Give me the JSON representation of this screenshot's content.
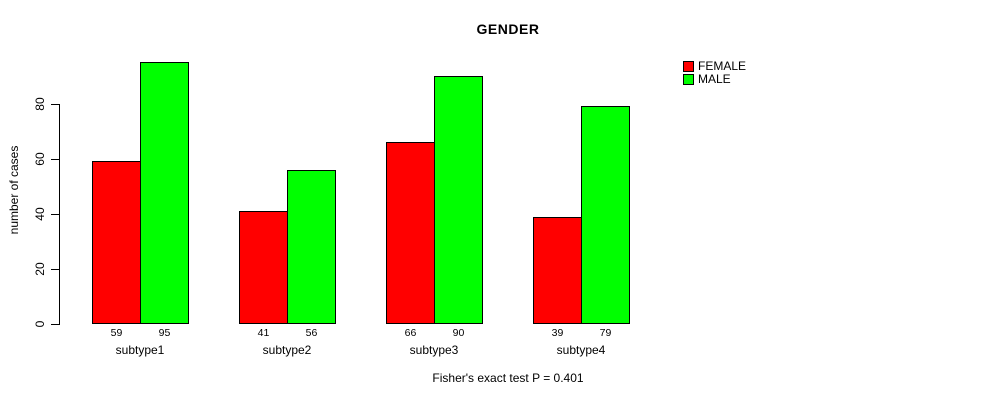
{
  "chart_data": {
    "type": "bar",
    "title": "GENDER",
    "ylabel": "number of cases",
    "xlabel": "",
    "categories": [
      "subtype1",
      "subtype2",
      "subtype3",
      "subtype4"
    ],
    "series": [
      {
        "name": "FEMALE",
        "color": "#ff0000",
        "values": [
          59,
          41,
          66,
          39
        ]
      },
      {
        "name": "MALE",
        "color": "#00ff00",
        "values": [
          95,
          56,
          90,
          79
        ]
      }
    ],
    "yticks": [
      0,
      20,
      40,
      60,
      80
    ],
    "ylim": [
      0,
      95
    ],
    "grid": false,
    "legend_position": "top-right",
    "bar_value_labels": [
      [
        "59",
        "95"
      ],
      [
        "41",
        "56"
      ],
      [
        "66",
        "90"
      ],
      [
        "39",
        "79"
      ]
    ],
    "annotation": "Fisher's exact test P = 0.401"
  },
  "colors": {
    "background": "#ffffff",
    "axis": "#000000",
    "text": "#000000",
    "bar_border": "#000000",
    "female": "#ff0000",
    "male": "#00ff00"
  }
}
